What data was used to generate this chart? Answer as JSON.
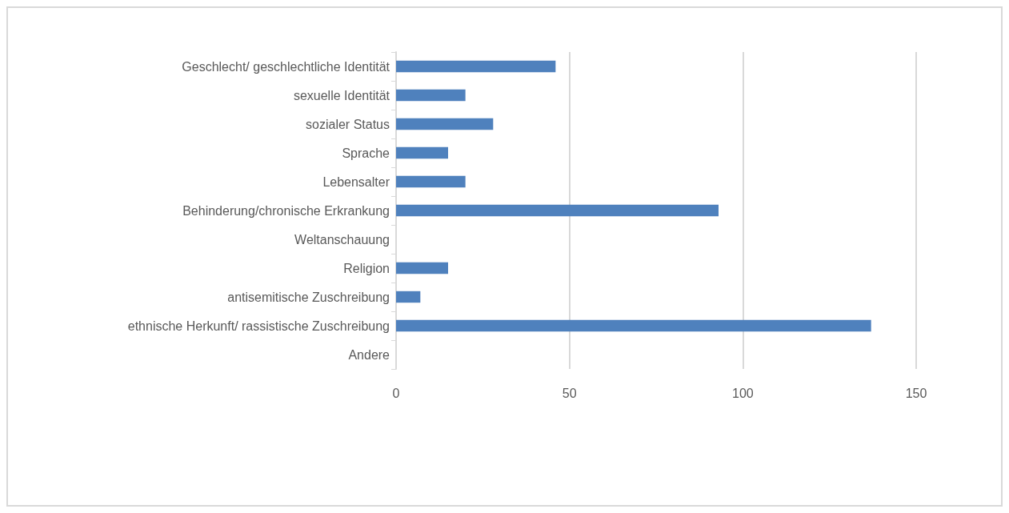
{
  "chart_data": {
    "type": "bar",
    "orientation": "horizontal",
    "categories": [
      "Geschlecht/ geschlechtliche Identität",
      "sexuelle Identität",
      "sozialer Status",
      "Sprache",
      "Lebensalter",
      "Behinderung/chronische Erkrankung",
      "Weltanschauung",
      "Religion",
      "antisemitische Zuschreibung",
      "ethnische Herkunft/ rassistische Zuschreibung",
      "Andere"
    ],
    "values": [
      46,
      20,
      28,
      15,
      20,
      93,
      0,
      15,
      7,
      137,
      0
    ],
    "color": "#4f81bd",
    "xlim": [
      0,
      150
    ],
    "xticks": [
      0,
      50,
      100,
      150
    ],
    "grid": "x"
  }
}
